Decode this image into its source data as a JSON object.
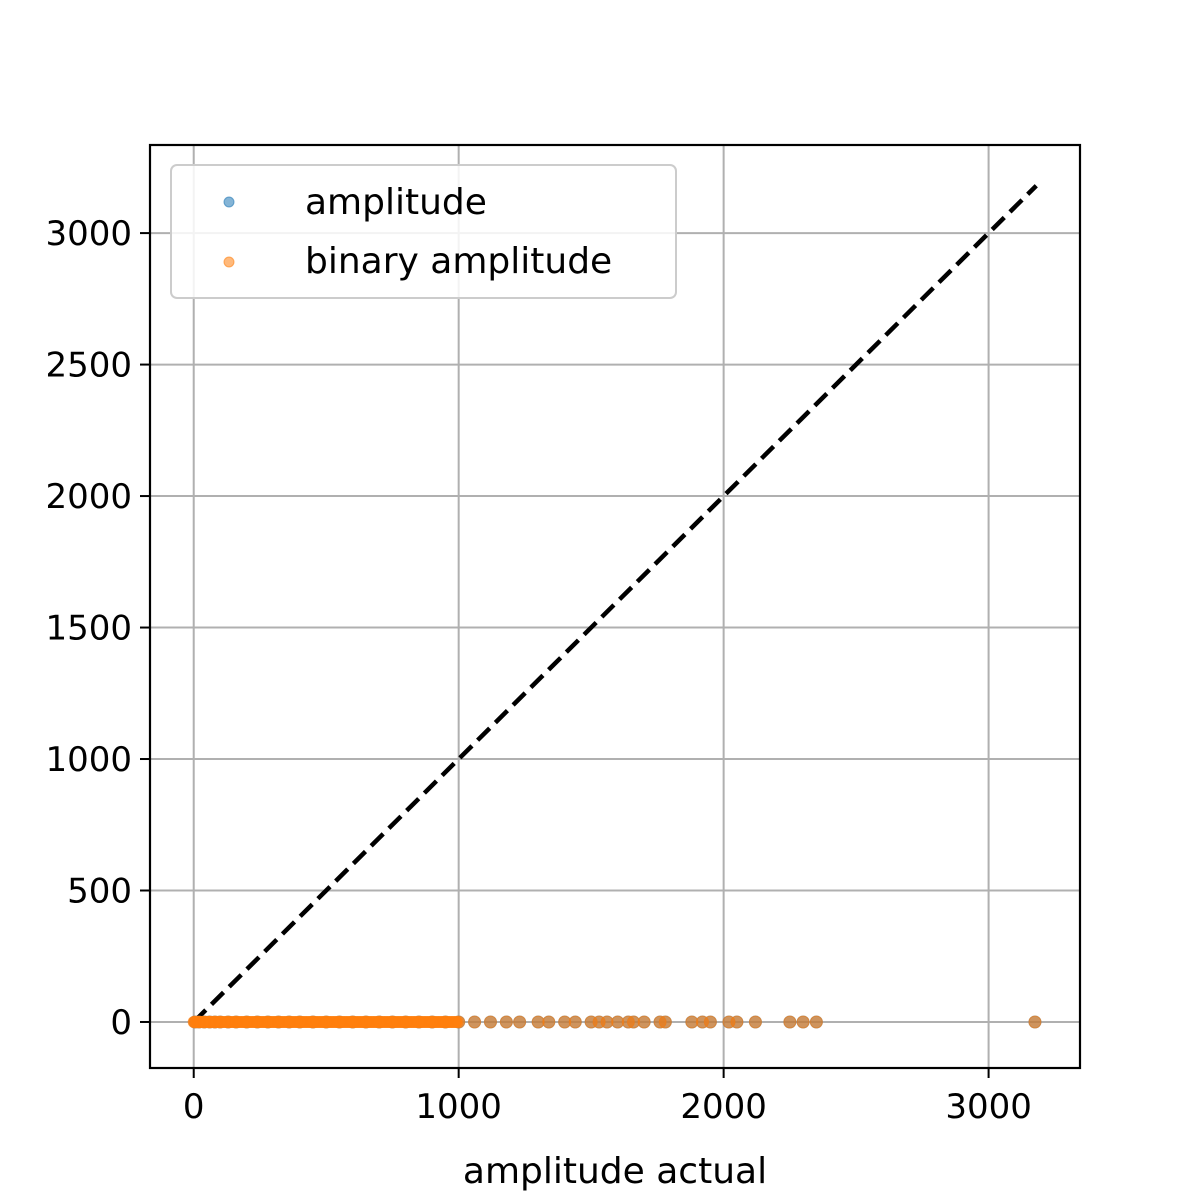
{
  "chart_data": {
    "type": "scatter",
    "title": "",
    "xlabel": "amplitude actual",
    "ylabel": "",
    "xlim": [
      -165,
      3345
    ],
    "ylim": [
      -175,
      3335
    ],
    "xticks": [
      0,
      1000,
      2000,
      3000
    ],
    "yticks": [
      0,
      500,
      1000,
      1500,
      2000,
      2500,
      3000
    ],
    "grid": true,
    "legend_position": "top-left",
    "reference_line": {
      "style": "dashed",
      "color": "#000000",
      "from": [
        0,
        0
      ],
      "to": [
        3180,
        3180
      ]
    },
    "series": [
      {
        "name": "amplitude",
        "color": "#1f77b4",
        "x": [
          5,
          20,
          40,
          60,
          80,
          100,
          130,
          160,
          200,
          240,
          280,
          320,
          360,
          400,
          450,
          500,
          550,
          600,
          650,
          700,
          750,
          800,
          850,
          900,
          950,
          1000,
          1060,
          1120,
          1180,
          1230,
          1300,
          1340,
          1400,
          1440,
          1500,
          1530,
          1560,
          1600,
          1640,
          1660,
          1700,
          1760,
          1780,
          1880,
          1920,
          1950,
          2020,
          2050,
          2120,
          2250,
          2300,
          2350,
          3175
        ],
        "y": [
          0,
          0,
          0,
          0,
          0,
          0,
          0,
          0,
          0,
          0,
          0,
          0,
          0,
          0,
          0,
          0,
          0,
          0,
          0,
          0,
          0,
          0,
          0,
          0,
          0,
          0,
          0,
          0,
          0,
          0,
          0,
          0,
          0,
          0,
          0,
          0,
          0,
          0,
          0,
          0,
          0,
          0,
          0,
          0,
          0,
          0,
          0,
          0,
          0,
          0,
          0,
          0,
          0
        ]
      },
      {
        "name": "binary amplitude",
        "color": "#ff7f0e",
        "x": [
          5,
          20,
          40,
          60,
          80,
          100,
          130,
          160,
          200,
          240,
          280,
          320,
          360,
          400,
          450,
          500,
          550,
          600,
          650,
          700,
          750,
          800,
          850,
          900,
          950,
          1000,
          1060,
          1120,
          1180,
          1230,
          1300,
          1340,
          1400,
          1440,
          1500,
          1530,
          1560,
          1600,
          1640,
          1660,
          1700,
          1760,
          1780,
          1880,
          1920,
          1950,
          2020,
          2050,
          2120,
          2250,
          2300,
          2350,
          3175
        ],
        "y": [
          0,
          0,
          0,
          0,
          0,
          0,
          0,
          0,
          0,
          0,
          0,
          0,
          0,
          0,
          0,
          0,
          0,
          0,
          0,
          0,
          0,
          0,
          0,
          0,
          0,
          0,
          0,
          0,
          0,
          0,
          0,
          0,
          0,
          0,
          0,
          0,
          0,
          0,
          0,
          0,
          0,
          0,
          0,
          0,
          0,
          0,
          0,
          0,
          0,
          0,
          0,
          0,
          0
        ]
      }
    ]
  }
}
